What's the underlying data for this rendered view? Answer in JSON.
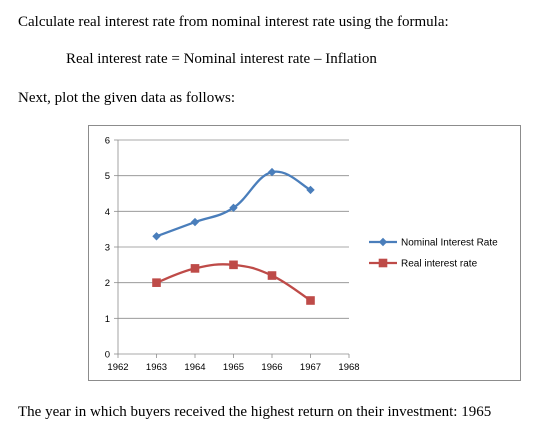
{
  "intro": "Calculate real interest rate from nominal interest rate using the formula:",
  "formula": "Real interest rate = Nominal interest rate – Inflation",
  "next": "Next, plot the given data as follows:",
  "answer": "The year in which buyers received the highest return on their investment: 1965",
  "chart_data": {
    "type": "line",
    "x_ticks": [
      "1962",
      "1963",
      "1964",
      "1965",
      "1966",
      "1967",
      "1968"
    ],
    "x": [
      1963,
      1964,
      1965,
      1966,
      1967
    ],
    "xlim": [
      1962,
      1968
    ],
    "ylim": [
      0,
      6
    ],
    "y_ticks": [
      "0",
      "1",
      "2",
      "3",
      "4",
      "5",
      "6"
    ],
    "grid": true,
    "smooth": true,
    "legend_position": "right",
    "series": [
      {
        "name": "Nominal Interest Rate",
        "values": [
          3.3,
          3.7,
          4.1,
          5.1,
          4.6
        ],
        "color": "#4a7ebb",
        "marker": "diamond"
      },
      {
        "name": "Real interest rate",
        "values": [
          2.0,
          2.4,
          2.5,
          2.2,
          1.5
        ],
        "color": "#be4b48",
        "marker": "square"
      }
    ]
  }
}
